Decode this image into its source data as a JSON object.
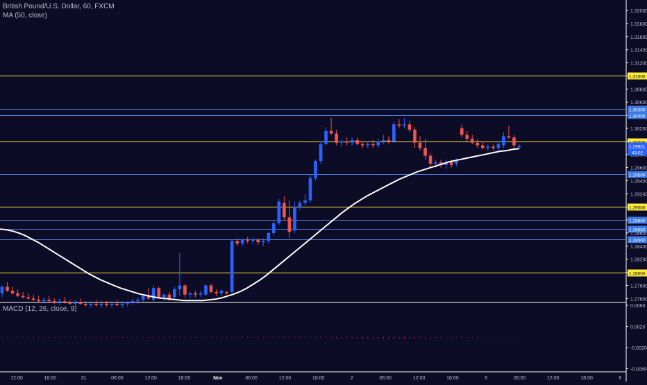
{
  "header": {
    "symbol_line": "British Pound/U.S. Dollar, 60, FXCM",
    "ma_label": "MA (50, close)",
    "macd_label": "MACD (12, 26, close, 9)"
  },
  "colors": {
    "background": "#0d0c26",
    "up": "#2962ff",
    "down": "#ef5350",
    "ma": "#ffffff",
    "hline_yellow": "#ffeb3b",
    "hline_blue": "#4a7bd8",
    "price_tag": "#2962ff",
    "hist": "#c2185b"
  },
  "chart_data": [
    {
      "type": "candlestick",
      "title": "British Pound/U.S. Dollar, 60, FXCM",
      "x_ticks": [
        "12:00",
        "18:00",
        "31",
        "06:00",
        "12:00",
        "18:00",
        "Nov",
        "06:00",
        "12:00",
        "18:00",
        "2",
        "06:00",
        "12:00",
        "18:00",
        "5",
        "06:00",
        "12:00",
        "18:00",
        "6"
      ],
      "y_ticks": [
        "1.27600",
        "1.27800",
        "1.28000",
        "1.28200",
        "1.28400",
        "1.28600",
        "1.28800",
        "1.29000",
        "1.29200",
        "1.29400",
        "1.29600",
        "1.29800",
        "1.30000",
        "1.30200",
        "1.30400",
        "1.30600",
        "1.30800",
        "1.31000",
        "1.31200",
        "1.31400",
        "1.31600",
        "1.31800",
        "1.32000"
      ],
      "ylim": [
        1.2754,
        1.3216
      ],
      "last_price": {
        "value": "1.29931",
        "countdown": "43:02"
      },
      "horizontal_levels": [
        {
          "value": 1.31,
          "label": "1.31000",
          "color": "yellow"
        },
        {
          "value": 1.305,
          "label": "1.30500",
          "color": "blue"
        },
        {
          "value": 1.304,
          "label": "1.30400",
          "color": "blue"
        },
        {
          "value": 1.3,
          "label": "1.30000",
          "color": "yellow"
        },
        {
          "value": 1.295,
          "label": "1.29500",
          "color": "blue"
        },
        {
          "value": 1.29,
          "label": "1.29000",
          "color": "yellow"
        },
        {
          "value": 1.288,
          "label": "1.28800",
          "color": "blue"
        },
        {
          "value": 1.2866,
          "label": "1.28660",
          "color": "blue"
        },
        {
          "value": 1.285,
          "label": "1.28500",
          "color": "blue"
        },
        {
          "value": 1.28,
          "label": "1.28000",
          "color": "yellow"
        }
      ],
      "candles": [
        {
          "t": "1",
          "o": 1.2768,
          "h": 1.278,
          "l": 1.2762,
          "c": 1.2778
        },
        {
          "t": "2",
          "o": 1.2778,
          "h": 1.2785,
          "l": 1.277,
          "c": 1.2772
        },
        {
          "t": "3",
          "o": 1.2772,
          "h": 1.2778,
          "l": 1.2766,
          "c": 1.2768
        },
        {
          "t": "4",
          "o": 1.2768,
          "h": 1.2774,
          "l": 1.2762,
          "c": 1.2764
        },
        {
          "t": "5",
          "o": 1.2764,
          "h": 1.277,
          "l": 1.276,
          "c": 1.2762
        },
        {
          "t": "6",
          "o": 1.2762,
          "h": 1.2768,
          "l": 1.2758,
          "c": 1.276
        },
        {
          "t": "7",
          "o": 1.276,
          "h": 1.2766,
          "l": 1.2756,
          "c": 1.2758
        },
        {
          "t": "8",
          "o": 1.2758,
          "h": 1.2764,
          "l": 1.2754,
          "c": 1.2756
        },
        {
          "t": "9",
          "o": 1.2756,
          "h": 1.2762,
          "l": 1.2752,
          "c": 1.2758
        },
        {
          "t": "10",
          "o": 1.2758,
          "h": 1.2764,
          "l": 1.2754,
          "c": 1.2756
        },
        {
          "t": "11",
          "o": 1.2756,
          "h": 1.276,
          "l": 1.2752,
          "c": 1.2754
        },
        {
          "t": "12",
          "o": 1.2754,
          "h": 1.276,
          "l": 1.275,
          "c": 1.2756
        },
        {
          "t": "13",
          "o": 1.2756,
          "h": 1.2762,
          "l": 1.2752,
          "c": 1.2754
        },
        {
          "t": "14",
          "o": 1.2754,
          "h": 1.2758,
          "l": 1.275,
          "c": 1.2752
        },
        {
          "t": "15",
          "o": 1.2752,
          "h": 1.2758,
          "l": 1.2748,
          "c": 1.2754
        },
        {
          "t": "16",
          "o": 1.2754,
          "h": 1.276,
          "l": 1.275,
          "c": 1.2752
        },
        {
          "t": "17",
          "o": 1.2752,
          "h": 1.2756,
          "l": 1.2748,
          "c": 1.275
        },
        {
          "t": "18",
          "o": 1.275,
          "h": 1.2756,
          "l": 1.2746,
          "c": 1.2752
        },
        {
          "t": "19",
          "o": 1.2752,
          "h": 1.2758,
          "l": 1.2748,
          "c": 1.275
        },
        {
          "t": "20",
          "o": 1.275,
          "h": 1.2756,
          "l": 1.2746,
          "c": 1.2752
        },
        {
          "t": "21",
          "o": 1.2752,
          "h": 1.2756,
          "l": 1.2748,
          "c": 1.275
        },
        {
          "t": "22",
          "o": 1.275,
          "h": 1.2756,
          "l": 1.2746,
          "c": 1.2752
        },
        {
          "t": "23",
          "o": 1.2752,
          "h": 1.2758,
          "l": 1.2748,
          "c": 1.275
        },
        {
          "t": "24",
          "o": 1.275,
          "h": 1.2756,
          "l": 1.2746,
          "c": 1.2752
        },
        {
          "t": "25",
          "o": 1.2752,
          "h": 1.2756,
          "l": 1.2748,
          "c": 1.2754
        },
        {
          "t": "26",
          "o": 1.2754,
          "h": 1.276,
          "l": 1.275,
          "c": 1.2756
        },
        {
          "t": "27",
          "o": 1.2756,
          "h": 1.2762,
          "l": 1.2752,
          "c": 1.2758
        },
        {
          "t": "28",
          "o": 1.2758,
          "h": 1.2766,
          "l": 1.2754,
          "c": 1.2764
        },
        {
          "t": "29",
          "o": 1.2764,
          "h": 1.2776,
          "l": 1.2758,
          "c": 1.276
        },
        {
          "t": "30",
          "o": 1.2758,
          "h": 1.278,
          "l": 1.2754,
          "c": 1.2776
        },
        {
          "t": "31",
          "o": 1.2776,
          "h": 1.2778,
          "l": 1.276,
          "c": 1.2762
        },
        {
          "t": "32",
          "o": 1.2762,
          "h": 1.2768,
          "l": 1.2756,
          "c": 1.2766
        },
        {
          "t": "33",
          "o": 1.2766,
          "h": 1.277,
          "l": 1.2756,
          "c": 1.276
        },
        {
          "t": "34",
          "o": 1.2762,
          "h": 1.2778,
          "l": 1.276,
          "c": 1.2774
        },
        {
          "t": "35",
          "o": 1.2774,
          "h": 1.283,
          "l": 1.2764,
          "c": 1.278
        },
        {
          "t": "36",
          "o": 1.278,
          "h": 1.2782,
          "l": 1.2762,
          "c": 1.2766
        },
        {
          "t": "37",
          "o": 1.2766,
          "h": 1.277,
          "l": 1.276,
          "c": 1.2768
        },
        {
          "t": "38",
          "o": 1.2768,
          "h": 1.2772,
          "l": 1.2762,
          "c": 1.2766
        },
        {
          "t": "39",
          "o": 1.2766,
          "h": 1.2772,
          "l": 1.2762,
          "c": 1.2768
        },
        {
          "t": "40",
          "o": 1.2766,
          "h": 1.2782,
          "l": 1.2764,
          "c": 1.278
        },
        {
          "t": "41",
          "o": 1.278,
          "h": 1.2782,
          "l": 1.2768,
          "c": 1.277
        },
        {
          "t": "42",
          "o": 1.277,
          "h": 1.2774,
          "l": 1.2764,
          "c": 1.2768
        },
        {
          "t": "43",
          "o": 1.2768,
          "h": 1.2774,
          "l": 1.2764,
          "c": 1.2772
        },
        {
          "t": "44",
          "o": 1.277,
          "h": 1.2772,
          "l": 1.2766,
          "c": 1.2768
        },
        {
          "t": "45",
          "o": 1.277,
          "h": 1.285,
          "l": 1.2768,
          "c": 1.2848
        },
        {
          "t": "46",
          "o": 1.2848,
          "h": 1.2852,
          "l": 1.284,
          "c": 1.2844
        },
        {
          "t": "47",
          "o": 1.2844,
          "h": 1.2852,
          "l": 1.284,
          "c": 1.285
        },
        {
          "t": "48",
          "o": 1.285,
          "h": 1.2854,
          "l": 1.2844,
          "c": 1.2848
        },
        {
          "t": "49",
          "o": 1.2848,
          "h": 1.2854,
          "l": 1.2844,
          "c": 1.285
        },
        {
          "t": "50",
          "o": 1.285,
          "h": 1.2852,
          "l": 1.2842,
          "c": 1.2846
        },
        {
          "t": "51",
          "o": 1.2846,
          "h": 1.2852,
          "l": 1.284,
          "c": 1.2848
        },
        {
          "t": "52",
          "o": 1.2848,
          "h": 1.2862,
          "l": 1.2844,
          "c": 1.286
        },
        {
          "t": "53",
          "o": 1.286,
          "h": 1.2878,
          "l": 1.2856,
          "c": 1.2875
        },
        {
          "t": "54",
          "o": 1.2875,
          "h": 1.2912,
          "l": 1.2872,
          "c": 1.2908
        },
        {
          "t": "55",
          "o": 1.2906,
          "h": 1.2916,
          "l": 1.288,
          "c": 1.2884
        },
        {
          "t": "56",
          "o": 1.2884,
          "h": 1.291,
          "l": 1.2852,
          "c": 1.2862
        },
        {
          "t": "57",
          "o": 1.2864,
          "h": 1.2908,
          "l": 1.286,
          "c": 1.29
        },
        {
          "t": "58",
          "o": 1.29,
          "h": 1.291,
          "l": 1.2896,
          "c": 1.2906
        },
        {
          "t": "59",
          "o": 1.2906,
          "h": 1.292,
          "l": 1.2902,
          "c": 1.291
        },
        {
          "t": "60",
          "o": 1.291,
          "h": 1.295,
          "l": 1.2906,
          "c": 1.2944
        },
        {
          "t": "61",
          "o": 1.2944,
          "h": 1.2972,
          "l": 1.294,
          "c": 1.297
        },
        {
          "t": "62",
          "o": 1.297,
          "h": 1.3,
          "l": 1.2966,
          "c": 1.2996
        },
        {
          "t": "63",
          "o": 1.2996,
          "h": 1.3022,
          "l": 1.2994,
          "c": 1.3016
        },
        {
          "t": "64",
          "o": 1.3016,
          "h": 1.3036,
          "l": 1.301,
          "c": 1.3012
        },
        {
          "t": "65",
          "o": 1.3012,
          "h": 1.3018,
          "l": 1.2994,
          "c": 1.2998
        },
        {
          "t": "66",
          "o": 1.2998,
          "h": 1.3004,
          "l": 1.2992,
          "c": 1.3
        },
        {
          "t": "67",
          "o": 1.3,
          "h": 1.3006,
          "l": 1.2994,
          "c": 1.2998
        },
        {
          "t": "68",
          "o": 1.2998,
          "h": 1.3006,
          "l": 1.2994,
          "c": 1.3002
        },
        {
          "t": "69",
          "o": 1.3002,
          "h": 1.3006,
          "l": 1.2994,
          "c": 1.2996
        },
        {
          "t": "70",
          "o": 1.2996,
          "h": 1.3,
          "l": 1.299,
          "c": 1.2994
        },
        {
          "t": "71",
          "o": 1.2994,
          "h": 1.3,
          "l": 1.299,
          "c": 1.2996
        },
        {
          "t": "72",
          "o": 1.2996,
          "h": 1.3002,
          "l": 1.299,
          "c": 1.2994
        },
        {
          "t": "73",
          "o": 1.2994,
          "h": 1.3004,
          "l": 1.299,
          "c": 1.3
        },
        {
          "t": "74",
          "o": 1.3,
          "h": 1.301,
          "l": 1.2996,
          "c": 1.3002
        },
        {
          "t": "75",
          "o": 1.3002,
          "h": 1.3008,
          "l": 1.2996,
          "c": 1.3
        },
        {
          "t": "76",
          "o": 1.3,
          "h": 1.303,
          "l": 1.2998,
          "c": 1.3026
        },
        {
          "t": "77",
          "o": 1.3026,
          "h": 1.3034,
          "l": 1.302,
          "c": 1.3024
        },
        {
          "t": "78",
          "o": 1.3024,
          "h": 1.3036,
          "l": 1.302,
          "c": 1.3026
        },
        {
          "t": "79",
          "o": 1.3026,
          "h": 1.3032,
          "l": 1.3014,
          "c": 1.3018
        },
        {
          "t": "80",
          "o": 1.3018,
          "h": 1.3022,
          "l": 1.299,
          "c": 1.2998
        },
        {
          "t": "81",
          "o": 1.2998,
          "h": 1.3008,
          "l": 1.2986,
          "c": 1.299
        },
        {
          "t": "82",
          "o": 1.299,
          "h": 1.3004,
          "l": 1.2972,
          "c": 1.2978
        },
        {
          "t": "83",
          "o": 1.2978,
          "h": 1.2982,
          "l": 1.2962,
          "c": 1.2966
        },
        {
          "t": "84",
          "o": 1.2966,
          "h": 1.2972,
          "l": 1.296,
          "c": 1.2968
        },
        {
          "t": "85",
          "o": 1.2968,
          "h": 1.2972,
          "l": 1.296,
          "c": 1.2964
        },
        {
          "t": "86",
          "o": 1.2964,
          "h": 1.2972,
          "l": 1.2958,
          "c": 1.2968
        },
        {
          "t": "87",
          "o": 1.2968,
          "h": 1.2972,
          "l": 1.296,
          "c": 1.2964
        },
        {
          "t": "88",
          "o": 1.2966,
          "h": 1.2974,
          "l": 1.2962,
          "c": 1.297
        },
        {
          "t": "89",
          "o": 1.302,
          "h": 1.3026,
          "l": 1.3006,
          "c": 1.301
        },
        {
          "t": "90",
          "o": 1.301,
          "h": 1.3016,
          "l": 1.3,
          "c": 1.3004
        },
        {
          "t": "91",
          "o": 1.3004,
          "h": 1.301,
          "l": 1.2996,
          "c": 1.2998
        },
        {
          "t": "92",
          "o": 1.2998,
          "h": 1.3004,
          "l": 1.299,
          "c": 1.2994
        },
        {
          "t": "93",
          "o": 1.2994,
          "h": 1.3,
          "l": 1.2988,
          "c": 1.299
        },
        {
          "t": "94",
          "o": 1.299,
          "h": 1.2996,
          "l": 1.2986,
          "c": 1.2992
        },
        {
          "t": "95",
          "o": 1.2992,
          "h": 1.2996,
          "l": 1.2986,
          "c": 1.299
        },
        {
          "t": "96",
          "o": 1.299,
          "h": 1.3,
          "l": 1.2986,
          "c": 1.2996
        },
        {
          "t": "97",
          "o": 1.2994,
          "h": 1.3014,
          "l": 1.299,
          "c": 1.3008
        },
        {
          "t": "98",
          "o": 1.3008,
          "h": 1.3024,
          "l": 1.3004,
          "c": 1.3006
        },
        {
          "t": "99",
          "o": 1.3006,
          "h": 1.301,
          "l": 1.299,
          "c": 1.2994
        },
        {
          "t": "100",
          "o": 1.2991,
          "h": 1.2996,
          "l": 1.2988,
          "c": 1.2993
        }
      ],
      "ma_50": [
        1.2866,
        1.2865,
        1.2863,
        1.286,
        1.2856,
        1.2851,
        1.2846,
        1.284,
        1.2834,
        1.2828,
        1.2822,
        1.2816,
        1.281,
        1.2804,
        1.2798,
        1.2793,
        1.2788,
        1.2784,
        1.278,
        1.2776,
        1.2773,
        1.277,
        1.2767,
        1.2765,
        1.2763,
        1.2761,
        1.276,
        1.2759,
        1.2758,
        1.2757,
        1.2757,
        1.2757,
        1.2757,
        1.2758,
        1.2759,
        1.2761,
        1.2764,
        1.2767,
        1.2771,
        1.2776,
        1.2782,
        1.2788,
        1.2795,
        1.2803,
        1.2811,
        1.2819,
        1.2827,
        1.2835,
        1.2843,
        1.2851,
        1.2859,
        1.2867,
        1.2875,
        1.2883,
        1.2891,
        1.2898,
        1.2905,
        1.2911,
        1.2917,
        1.2922,
        1.2927,
        1.2932,
        1.2937,
        1.2942,
        1.2946,
        1.295,
        1.2954,
        1.2957,
        1.296,
        1.2963,
        1.2966,
        1.2969,
        1.2971,
        1.2973,
        1.2975,
        1.2977,
        1.2979,
        1.2981,
        1.2983,
        1.2985,
        1.2986,
        1.2988,
        1.2989
      ],
      "ma_start_x_index": 0
    },
    {
      "type": "histogram",
      "title": "MACD (12, 26, close, 9)",
      "y_ticks": [
        "0.0060",
        "0.0020",
        "-0.0020",
        "-0.0060"
      ],
      "ylim": [
        -0.0066,
        0.0064
      ],
      "values": [
        -0.0001,
        -0.00012,
        -0.0001,
        -0.00012,
        -0.0001,
        -0.00012,
        -0.00014,
        -0.00012,
        -0.00014,
        -0.00012,
        -0.00014,
        -0.00012,
        -0.0001,
        -0.00012,
        -0.00014,
        -0.00016,
        -0.00014,
        -0.00012,
        -0.00014,
        -0.00012,
        -0.0001,
        -0.00012,
        -0.00014,
        -0.00012,
        -0.0001,
        -0.00012,
        -0.00014,
        -0.00016,
        -0.00014,
        -0.00012,
        -0.00014,
        -0.00012,
        -0.0001,
        -0.00012,
        -0.0001,
        -0.00012,
        -0.00014,
        -0.00012,
        -0.0001,
        -0.00012,
        -0.00014,
        -0.00012,
        -0.0001,
        -0.00012,
        -0.00014,
        -0.00012,
        -0.0001,
        -0.00012,
        -0.00014,
        -0.00016,
        -0.00014,
        -0.00012,
        -0.0001,
        -0.00012,
        -0.00014,
        -0.00016,
        -0.00018,
        -0.00016,
        -0.00014,
        -0.00012,
        -0.00014,
        -0.00016,
        -0.00018,
        -0.0002,
        -0.00022,
        -0.00024,
        -0.00026,
        -0.00028,
        -0.0003,
        -0.00028,
        -0.00026,
        -0.00028,
        -0.0003,
        -0.00032,
        -0.00034,
        -0.00036,
        -0.00034,
        -0.00032,
        -0.0003,
        -0.00028,
        -0.00026,
        -0.00024,
        -0.00022,
        -0.0002,
        -0.00018,
        -0.00016,
        -0.00014,
        -0.00012,
        -0.0001,
        -0.00012,
        -0.00014,
        -0.00012,
        -0.0001,
        -8e-05,
        -0.0001,
        -8e-05,
        -6e-05,
        -8e-05,
        -6e-05,
        -4e-05
      ]
    }
  ]
}
